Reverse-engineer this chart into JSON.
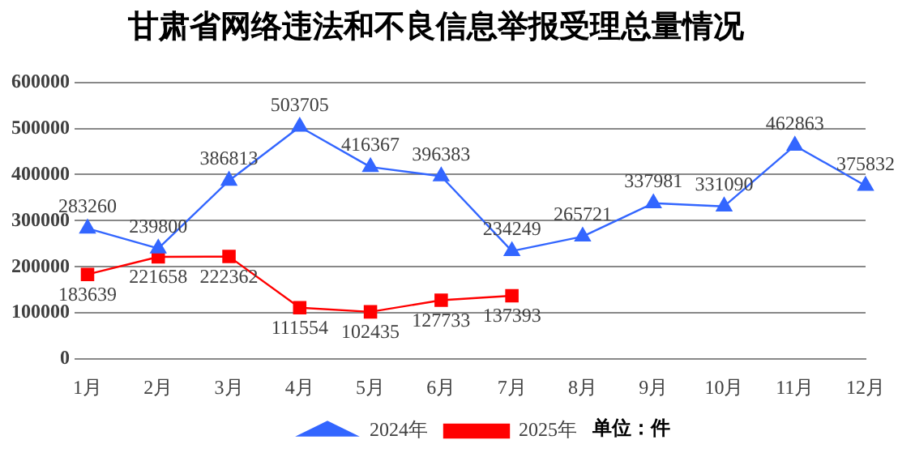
{
  "chart_data": {
    "type": "line",
    "title": "甘肃省网络违法和不良信息举报受理总量情况",
    "categories": [
      "1月",
      "2月",
      "3月",
      "4月",
      "5月",
      "6月",
      "7月",
      "8月",
      "9月",
      "10月",
      "11月",
      "12月"
    ],
    "series": [
      {
        "name": "2024年",
        "color": "#3366ff",
        "marker": "triangle",
        "values": [
          283260,
          239800,
          386813,
          503705,
          416367,
          396383,
          234249,
          265721,
          337981,
          331090,
          462863,
          375832
        ]
      },
      {
        "name": "2025年",
        "color": "#ff0000",
        "marker": "square",
        "values": [
          183639,
          221658,
          222362,
          111554,
          102435,
          127733,
          137393,
          null,
          null,
          null,
          null,
          null
        ]
      }
    ],
    "ylim": [
      0,
      600000
    ],
    "yticks": [
      0,
      100000,
      200000,
      300000,
      400000,
      500000,
      600000
    ],
    "grid": "y",
    "legend": "bottom",
    "data_labels": true,
    "line_style": "solid",
    "annotations": [
      "单位：件"
    ]
  }
}
